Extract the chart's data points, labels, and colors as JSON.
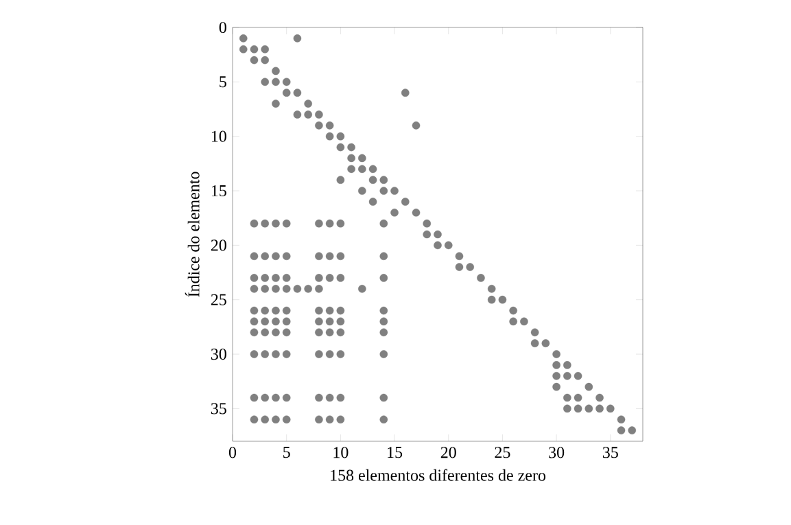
{
  "chart_data": {
    "type": "scatter",
    "xlabel": "158 elementos diferentes de zero",
    "ylabel": "Índice do elemento",
    "x": [
      1,
      6,
      1,
      2,
      3,
      2,
      3,
      4,
      3,
      4,
      5,
      5,
      6,
      16,
      4,
      7,
      6,
      7,
      8,
      8,
      9,
      17,
      9,
      10,
      10,
      11,
      11,
      12,
      11,
      12,
      13,
      10,
      13,
      14,
      12,
      14,
      15,
      13,
      16,
      15,
      17,
      2,
      3,
      4,
      5,
      8,
      9,
      10,
      14,
      18,
      18,
      19,
      19,
      20,
      2,
      3,
      4,
      5,
      8,
      9,
      10,
      14,
      21,
      21,
      22,
      2,
      3,
      4,
      5,
      8,
      9,
      10,
      14,
      23,
      2,
      3,
      4,
      5,
      6,
      7,
      8,
      12,
      24,
      24,
      25,
      2,
      3,
      4,
      5,
      8,
      9,
      10,
      14,
      26,
      2,
      3,
      4,
      5,
      8,
      9,
      10,
      14,
      26,
      27,
      2,
      3,
      4,
      5,
      8,
      9,
      10,
      14,
      28,
      28,
      29,
      2,
      3,
      4,
      5,
      8,
      9,
      10,
      14,
      30,
      30,
      31,
      30,
      31,
      32,
      30,
      33,
      2,
      3,
      4,
      5,
      8,
      9,
      10,
      14,
      31,
      32,
      34,
      31,
      32,
      33,
      34,
      35,
      2,
      3,
      4,
      5,
      8,
      9,
      10,
      14,
      36,
      36,
      37
    ],
    "values": [
      1,
      1,
      2,
      2,
      2,
      3,
      3,
      4,
      5,
      5,
      5,
      6,
      6,
      6,
      7,
      7,
      8,
      8,
      8,
      9,
      9,
      9,
      10,
      10,
      11,
      11,
      12,
      12,
      13,
      13,
      13,
      14,
      14,
      14,
      15,
      15,
      15,
      16,
      16,
      17,
      17,
      18,
      18,
      18,
      18,
      18,
      18,
      18,
      18,
      18,
      19,
      19,
      20,
      20,
      21,
      21,
      21,
      21,
      21,
      21,
      21,
      21,
      21,
      22,
      22,
      23,
      23,
      23,
      23,
      23,
      23,
      23,
      23,
      23,
      24,
      24,
      24,
      24,
      24,
      24,
      24,
      24,
      24,
      25,
      25,
      26,
      26,
      26,
      26,
      26,
      26,
      26,
      26,
      26,
      27,
      27,
      27,
      27,
      27,
      27,
      27,
      27,
      27,
      27,
      28,
      28,
      28,
      28,
      28,
      28,
      28,
      28,
      28,
      29,
      29,
      30,
      30,
      30,
      30,
      30,
      30,
      30,
      30,
      30,
      31,
      31,
      32,
      32,
      32,
      33,
      33,
      34,
      34,
      34,
      34,
      34,
      34,
      34,
      34,
      34,
      34,
      34,
      35,
      35,
      35,
      35,
      35,
      36,
      36,
      36,
      36,
      36,
      36,
      36,
      36,
      36,
      37,
      37
    ],
    "color": "#808080",
    "marker": "circle",
    "xlim": [
      0,
      38
    ],
    "ylim": [
      38,
      0
    ],
    "xticks": [
      0,
      5,
      10,
      15,
      20,
      25,
      30,
      35
    ],
    "yticks": [
      0,
      5,
      10,
      15,
      20,
      25,
      30,
      35
    ]
  }
}
